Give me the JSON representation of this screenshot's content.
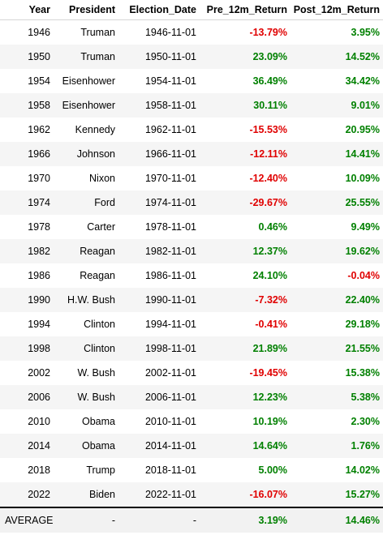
{
  "table": {
    "columns": [
      "Year",
      "President",
      "Election_Date",
      "Pre_12m_Return",
      "Post_12m_Return"
    ],
    "rows": [
      {
        "year": "1946",
        "president": "Truman",
        "election_date": "1946-11-01",
        "pre": "-13.79%",
        "post": "3.95%"
      },
      {
        "year": "1950",
        "president": "Truman",
        "election_date": "1950-11-01",
        "pre": "23.09%",
        "post": "14.52%"
      },
      {
        "year": "1954",
        "president": "Eisenhower",
        "election_date": "1954-11-01",
        "pre": "36.49%",
        "post": "34.42%"
      },
      {
        "year": "1958",
        "president": "Eisenhower",
        "election_date": "1958-11-01",
        "pre": "30.11%",
        "post": "9.01%"
      },
      {
        "year": "1962",
        "president": "Kennedy",
        "election_date": "1962-11-01",
        "pre": "-15.53%",
        "post": "20.95%"
      },
      {
        "year": "1966",
        "president": "Johnson",
        "election_date": "1966-11-01",
        "pre": "-12.11%",
        "post": "14.41%"
      },
      {
        "year": "1970",
        "president": "Nixon",
        "election_date": "1970-11-01",
        "pre": "-12.40%",
        "post": "10.09%"
      },
      {
        "year": "1974",
        "president": "Ford",
        "election_date": "1974-11-01",
        "pre": "-29.67%",
        "post": "25.55%"
      },
      {
        "year": "1978",
        "president": "Carter",
        "election_date": "1978-11-01",
        "pre": "0.46%",
        "post": "9.49%"
      },
      {
        "year": "1982",
        "president": "Reagan",
        "election_date": "1982-11-01",
        "pre": "12.37%",
        "post": "19.62%"
      },
      {
        "year": "1986",
        "president": "Reagan",
        "election_date": "1986-11-01",
        "pre": "24.10%",
        "post": "-0.04%"
      },
      {
        "year": "1990",
        "president": "H.W. Bush",
        "election_date": "1990-11-01",
        "pre": "-7.32%",
        "post": "22.40%"
      },
      {
        "year": "1994",
        "president": "Clinton",
        "election_date": "1994-11-01",
        "pre": "-0.41%",
        "post": "29.18%"
      },
      {
        "year": "1998",
        "president": "Clinton",
        "election_date": "1998-11-01",
        "pre": "21.89%",
        "post": "21.55%"
      },
      {
        "year": "2002",
        "president": "W. Bush",
        "election_date": "2002-11-01",
        "pre": "-19.45%",
        "post": "15.38%"
      },
      {
        "year": "2006",
        "president": "W. Bush",
        "election_date": "2006-11-01",
        "pre": "12.23%",
        "post": "5.38%"
      },
      {
        "year": "2010",
        "president": "Obama",
        "election_date": "2010-11-01",
        "pre": "10.19%",
        "post": "2.30%"
      },
      {
        "year": "2014",
        "president": "Obama",
        "election_date": "2014-11-01",
        "pre": "14.64%",
        "post": "1.76%"
      },
      {
        "year": "2018",
        "president": "Trump",
        "election_date": "2018-11-01",
        "pre": "5.00%",
        "post": "14.02%"
      },
      {
        "year": "2022",
        "president": "Biden",
        "election_date": "2022-11-01",
        "pre": "-16.07%",
        "post": "15.27%"
      }
    ],
    "average": {
      "label": "AVERAGE",
      "president": "-",
      "election_date": "-",
      "pre": "3.19%",
      "post": "14.46%"
    }
  },
  "colors": {
    "positive": "#008000",
    "negative": "#e00000",
    "stripe": "#f5f5f5"
  }
}
